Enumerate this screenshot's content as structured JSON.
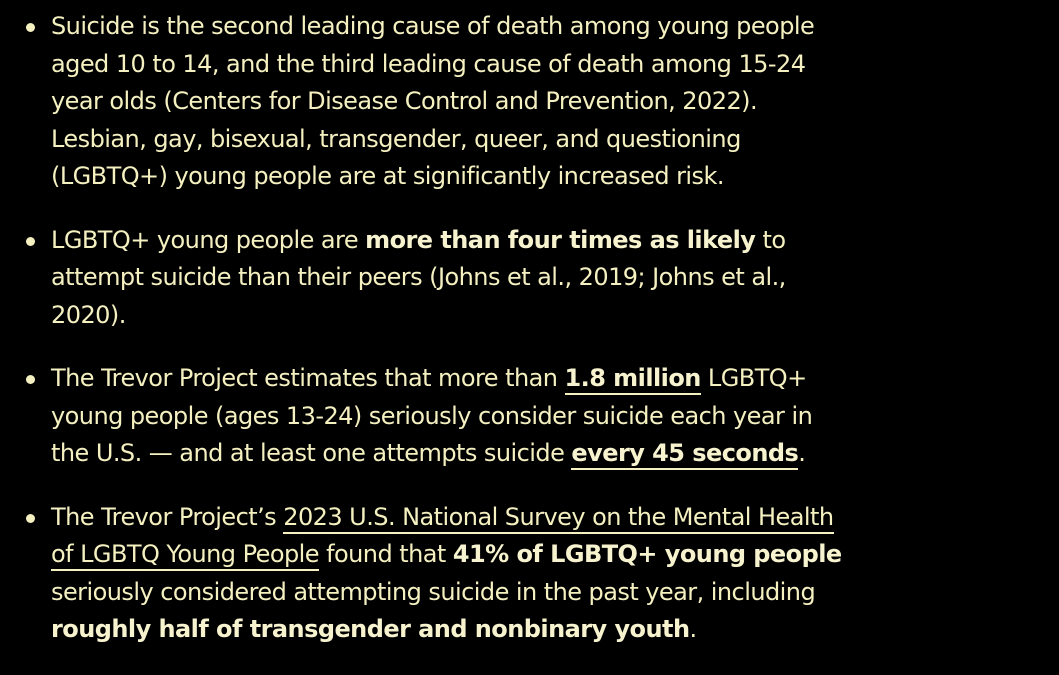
{
  "bullets": [
    {
      "text": "Suicide is the second leading cause of death among young people aged 10 to 14, and the third leading cause of death among 15-24 year olds (Centers for Disease Control and Prevention, 2022). Lesbian, gay, bisexual, transgender, queer, and questioning (LGBTQ+) young people are at significantly increased risk."
    },
    {
      "pre": "LGBTQ+ young people are ",
      "bold": "more than four times as likely",
      "post": " to attempt suicide than their peers (Johns et al., 2019; Johns et al., 2020)."
    },
    {
      "pre": "The Trevor Project estimates that more than ",
      "link1": "1.8 million",
      "mid": " LGBTQ+ young people (ages 13-24) seriously consider suicide each year in the U.S. — and at least one attempts suicide ",
      "link2": "every 45 seconds",
      "post": "."
    },
    {
      "pre": "The Trevor Project’s ",
      "link": "2023 U.S. National Survey on the Mental Health of LGBTQ Young People",
      "mid": " found that ",
      "bold1": "41% of LGBTQ+ young people",
      "mid2": " seriously considered attempting suicide in the past year, including ",
      "bold2": "roughly half of transgender and nonbinary youth",
      "post": "."
    }
  ]
}
